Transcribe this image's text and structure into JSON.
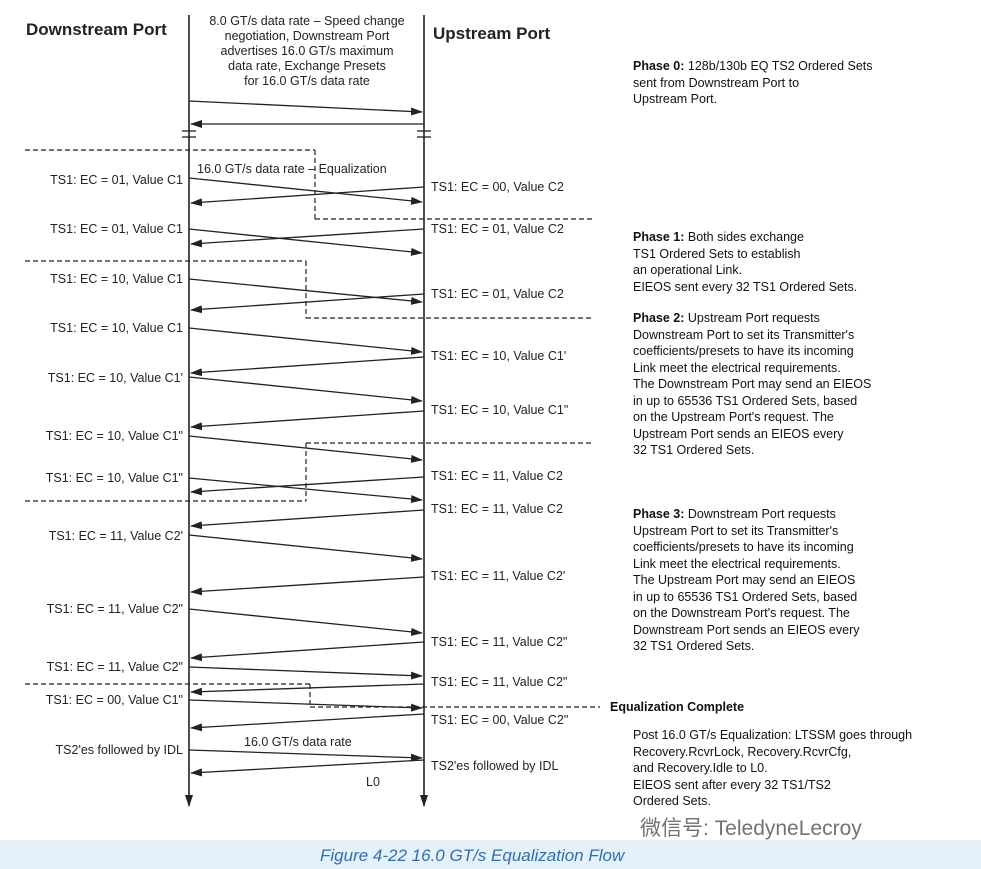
{
  "headers": {
    "downstream": "Downstream Port",
    "upstream": "Upstream Port"
  },
  "top_note": "8.0 GT/s data rate – Speed change\nnegotiation, Downstream Port\nadvertises 16.0 GT/s maximum\ndata rate, Exchange Presets\nfor 16.0 GT/s data rate",
  "eq_title": "16.0 GT/s data rate – Equalization",
  "left_labels": [
    "TS1: EC = 01, Value C1",
    "TS1: EC = 01, Value C1",
    "TS1: EC = 10, Value C1",
    "TS1: EC = 10, Value C1",
    "TS1: EC = 10, Value C1'",
    "TS1: EC = 10, Value C1\"",
    "TS1: EC = 10, Value C1\"",
    "TS1: EC = 11, Value C2'",
    "TS1: EC = 11, Value C2\"",
    "TS1: EC = 11, Value C2\"",
    "TS1: EC = 00, Value C1\"",
    "TS2'es followed by IDL"
  ],
  "right_labels": [
    "TS1: EC = 00, Value C2",
    "TS1: EC = 01, Value C2",
    "TS1: EC = 01, Value C2",
    "TS1: EC = 10, Value C1'",
    "TS1: EC = 10, Value C1\"",
    "TS1: EC = 11, Value C2",
    "TS1: EC = 11, Value C2",
    "TS1: EC = 11, Value C2'",
    "TS1: EC = 11, Value C2\"",
    "TS1: EC = 11, Value C2\"",
    "TS1: EC = 00, Value C2\"",
    "TS2'es followed by IDL"
  ],
  "rate_label": "16.0 GT/s data rate",
  "l0_label": "L0",
  "phases": [
    {
      "title": "Phase 0:",
      "text": " 128b/130b EQ TS2 Ordered Sets\nsent from Downstream Port to\nUpstream Port."
    },
    {
      "title": "Phase 1:",
      "text": " Both sides exchange\nTS1 Ordered Sets to establish\nan operational Link.\nEIEOS sent every 32 TS1 Ordered Sets."
    },
    {
      "title": "Phase 2:",
      "text": " Upstream Port requests\nDownstream Port to set its Transmitter's\ncoefficients/presets to have its incoming\nLink meet the electrical requirements.\nThe Downstream Port may send an EIEOS\nin up to 65536 TS1 Ordered Sets, based\non the Upstream Port's request. The\nUpstream Port sends an EIEOS every\n32 TS1 Ordered Sets."
    },
    {
      "title": "Phase 3:",
      "text": " Downstream Port requests\nUpstream Port to set its Transmitter's\ncoefficients/presets to have its incoming\nLink meet the electrical requirements.\nThe Upstream Port may send an EIEOS\nin up to 65536 TS1 Ordered Sets, based\non the Downstream Port's request. The\nDownstream Port sends an EIEOS every\n32 TS1 Ordered Sets."
    }
  ],
  "eq_complete": "Equalization Complete",
  "post_note": "Post 16.0 GT/s Equalization: LTSSM goes through\nRecovery.RcvrLock, Recovery.RcvrCfg,\nand Recovery.Idle to L0.\nEIEOS sent after every 32 TS1/TS2\nOrdered Sets.",
  "watermark": "微信号: TeledyneLecroy",
  "caption": "Figure 4-22  16.0 GT/s Equalization Flow"
}
